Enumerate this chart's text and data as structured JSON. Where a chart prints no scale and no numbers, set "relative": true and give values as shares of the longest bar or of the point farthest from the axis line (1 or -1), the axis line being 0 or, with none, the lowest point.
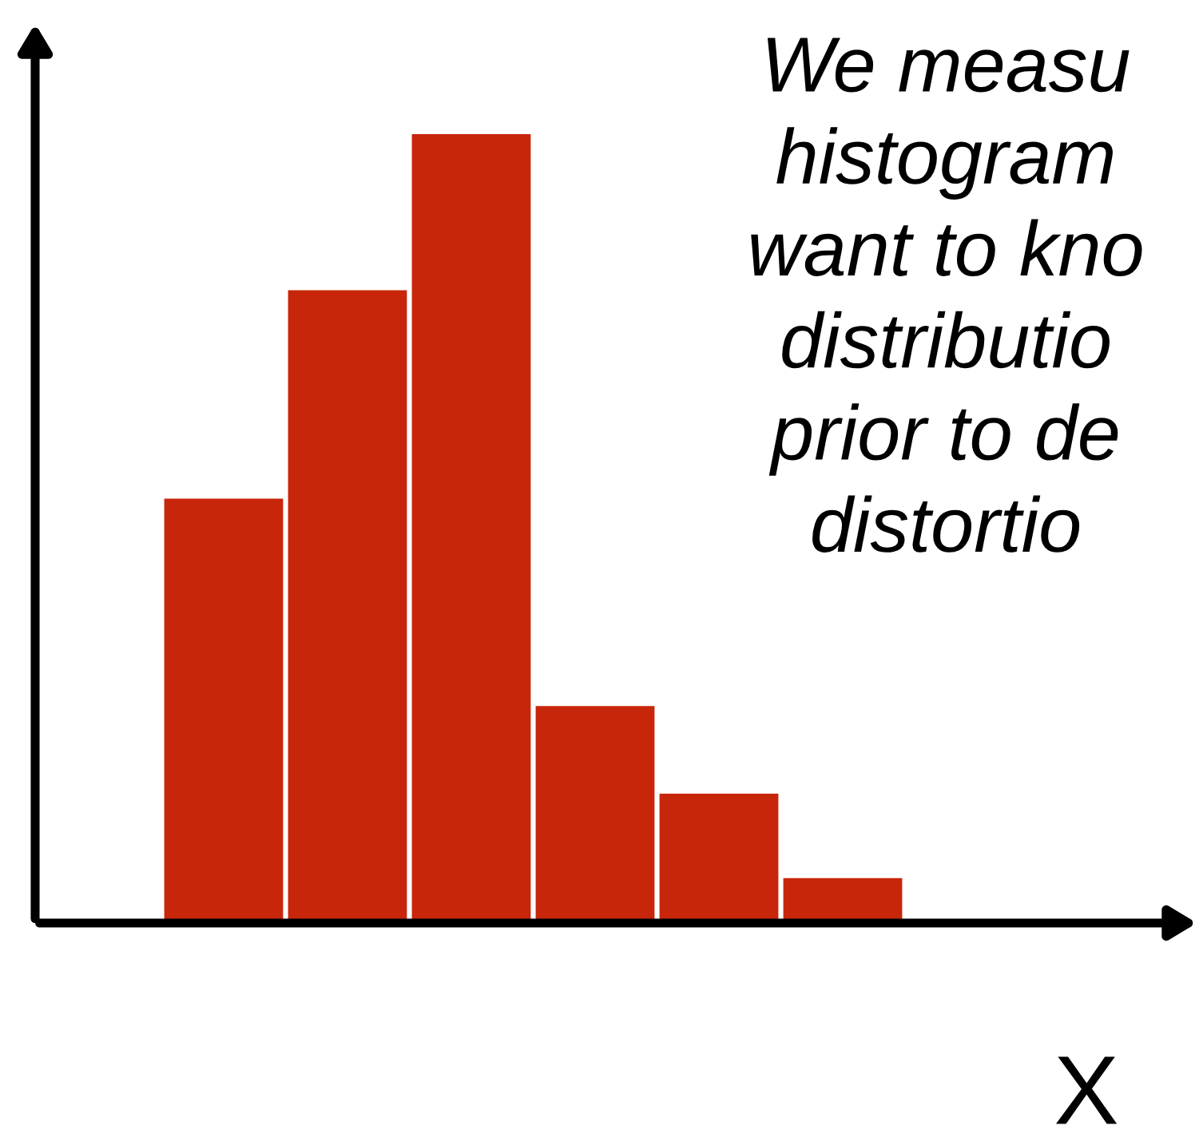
{
  "chart_data": {
    "type": "bar",
    "relative": true,
    "xlabel": "X",
    "categories": [
      null,
      null,
      null,
      null,
      null,
      null
    ],
    "values": [
      0.538,
      0.802,
      1,
      0.275,
      0.164,
      0.057
    ],
    "color": "#c8260a",
    "annotations": [
      "We measu\nhistogram\nwant to kno\ndistributio\nprior to de\ndistortio"
    ]
  }
}
